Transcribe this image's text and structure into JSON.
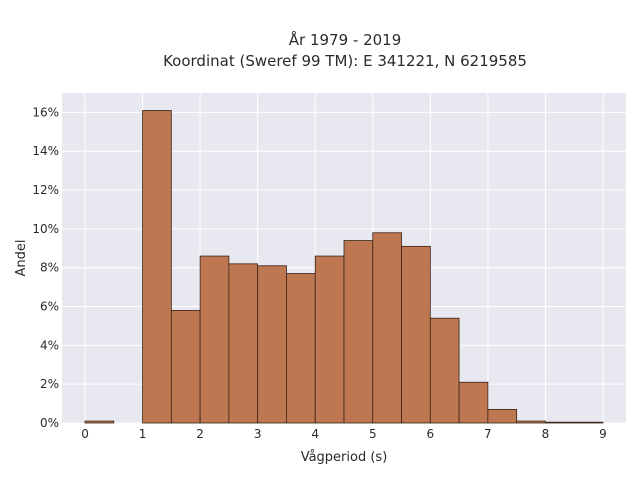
{
  "chart_data": {
    "type": "bar",
    "title": [
      "År 1979 - 2019",
      "Koordinat (Sweref 99 TM): E 341221, N 6219585"
    ],
    "xlabel": "Vågperiod (s)",
    "ylabel": "Andel",
    "bin_width": 0.5,
    "bins": [
      {
        "x0": 0.0,
        "x1": 0.5,
        "value": 0.1
      },
      {
        "x0": 0.5,
        "x1": 1.0,
        "value": 0.0
      },
      {
        "x0": 1.0,
        "x1": 1.5,
        "value": 16.1
      },
      {
        "x0": 1.5,
        "x1": 2.0,
        "value": 5.8
      },
      {
        "x0": 2.0,
        "x1": 2.5,
        "value": 8.6
      },
      {
        "x0": 2.5,
        "x1": 3.0,
        "value": 8.2
      },
      {
        "x0": 3.0,
        "x1": 3.5,
        "value": 8.1
      },
      {
        "x0": 3.5,
        "x1": 4.0,
        "value": 7.7
      },
      {
        "x0": 4.0,
        "x1": 4.5,
        "value": 8.6
      },
      {
        "x0": 4.5,
        "x1": 5.0,
        "value": 9.4
      },
      {
        "x0": 5.0,
        "x1": 5.5,
        "value": 9.8
      },
      {
        "x0": 5.5,
        "x1": 6.0,
        "value": 9.1
      },
      {
        "x0": 6.0,
        "x1": 6.5,
        "value": 5.4
      },
      {
        "x0": 6.5,
        "x1": 7.0,
        "value": 2.1
      },
      {
        "x0": 7.0,
        "x1": 7.5,
        "value": 0.7
      },
      {
        "x0": 7.5,
        "x1": 8.0,
        "value": 0.1
      },
      {
        "x0": 8.0,
        "x1": 8.5,
        "value": 0.02
      },
      {
        "x0": 8.5,
        "x1": 9.0,
        "value": 0.02
      }
    ],
    "xlim": [
      -0.4,
      9.4
    ],
    "ylim": [
      0,
      17
    ],
    "x_ticks": [
      0,
      1,
      2,
      3,
      4,
      5,
      6,
      7,
      8,
      9
    ],
    "x_tick_labels": [
      "0",
      "1",
      "2",
      "3",
      "4",
      "5",
      "6",
      "7",
      "8",
      "9"
    ],
    "y_ticks": [
      0,
      2,
      4,
      6,
      8,
      10,
      12,
      14,
      16
    ],
    "y_tick_labels": [
      "0%",
      "2%",
      "4%",
      "6%",
      "8%",
      "10%",
      "12%",
      "14%",
      "16%"
    ],
    "grid": true,
    "colors": {
      "bar_fill": "#bd7751",
      "bar_stroke": "#3a2418",
      "plot_background": "#e8e8f0",
      "grid": "#ffffff",
      "text": "#2a2a2a"
    }
  }
}
